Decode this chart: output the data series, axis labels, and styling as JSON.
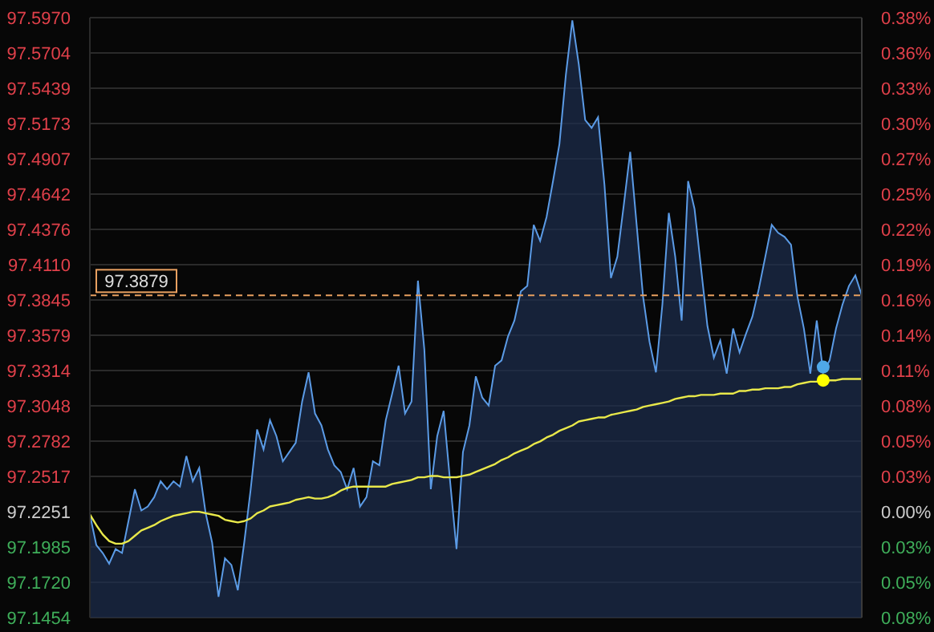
{
  "chart_data": {
    "type": "line",
    "categories": [
      null,
      null,
      null,
      null,
      null,
      null,
      null,
      null,
      null,
      null,
      null,
      null,
      null,
      null,
      null,
      null,
      null,
      null,
      null,
      null,
      null,
      null,
      null,
      null,
      null,
      null,
      null,
      null,
      null,
      null,
      null,
      null,
      null,
      null,
      null,
      null,
      null,
      null,
      null,
      null,
      null,
      null,
      null,
      null,
      null,
      null,
      null,
      null,
      null,
      null,
      null,
      null,
      null,
      null,
      null,
      null,
      null,
      null,
      null,
      null,
      null,
      null,
      null,
      null,
      null,
      null,
      null,
      null,
      null,
      null,
      null,
      null,
      null,
      null,
      null,
      null,
      null,
      null,
      null,
      null,
      null,
      null,
      null,
      null,
      null,
      null,
      null,
      null,
      null,
      null,
      null,
      null,
      null,
      null,
      null,
      null,
      null,
      null,
      null,
      null,
      null,
      null,
      null,
      null,
      null,
      null,
      null,
      null,
      null,
      null,
      null,
      null,
      null,
      null,
      null,
      null,
      null,
      null,
      null,
      null,
      null
    ],
    "series": [
      {
        "type": "area",
        "color": "#5b9be6",
        "values": [
          97.223,
          97.2,
          97.194,
          97.186,
          97.197,
          97.194,
          97.218,
          97.242,
          97.226,
          97.229,
          97.236,
          97.248,
          97.242,
          97.248,
          97.244,
          97.267,
          97.248,
          97.258,
          97.224,
          97.202,
          97.161,
          97.19,
          97.185,
          97.166,
          97.202,
          97.242,
          97.287,
          97.272,
          97.294,
          97.282,
          97.263,
          97.27,
          97.277,
          97.308,
          97.33,
          97.299,
          97.29,
          97.272,
          97.26,
          97.255,
          97.242,
          97.258,
          97.229,
          97.236,
          97.263,
          97.26,
          97.294,
          97.314,
          97.335,
          97.299,
          97.308,
          97.399,
          97.347,
          97.242,
          97.282,
          97.301,
          97.248,
          97.197,
          97.27,
          97.29,
          97.327,
          97.311,
          97.305,
          97.335,
          97.339,
          97.357,
          97.369,
          97.391,
          97.395,
          97.441,
          97.429,
          97.447,
          97.474,
          97.502,
          97.554,
          97.595,
          97.562,
          97.52,
          97.514,
          97.522,
          97.471,
          97.401,
          97.417,
          97.456,
          97.496,
          97.441,
          97.387,
          97.353,
          97.33,
          97.381,
          97.45,
          97.417,
          97.369,
          97.474,
          97.453,
          97.409,
          97.365,
          97.341,
          97.354,
          97.329,
          97.363,
          97.345,
          97.359,
          97.372,
          97.393,
          97.417,
          97.441,
          97.435,
          97.432,
          97.426,
          97.387,
          97.363,
          97.329,
          97.369,
          97.33,
          97.339,
          97.363,
          97.381,
          97.395,
          97.403,
          97.388
        ]
      },
      {
        "color": "#e8e84a",
        "values": [
          97.223,
          97.215,
          97.208,
          97.203,
          97.201,
          97.201,
          97.203,
          97.207,
          97.211,
          97.213,
          97.215,
          97.218,
          97.22,
          97.222,
          97.223,
          97.224,
          97.225,
          97.225,
          97.224,
          97.223,
          97.222,
          97.219,
          97.218,
          97.217,
          97.218,
          97.22,
          97.224,
          97.226,
          97.229,
          97.23,
          97.231,
          97.232,
          97.234,
          97.235,
          97.236,
          97.235,
          97.235,
          97.236,
          97.238,
          97.241,
          97.243,
          97.244,
          97.244,
          97.244,
          97.244,
          97.244,
          97.244,
          97.246,
          97.247,
          97.248,
          97.249,
          97.251,
          97.251,
          97.252,
          97.252,
          97.251,
          97.251,
          97.251,
          97.252,
          97.253,
          97.255,
          97.257,
          97.259,
          97.261,
          97.264,
          97.266,
          97.269,
          97.271,
          97.273,
          97.276,
          97.278,
          97.281,
          97.283,
          97.286,
          97.288,
          97.29,
          97.293,
          97.294,
          97.295,
          97.296,
          97.296,
          97.298,
          97.299,
          97.3,
          97.301,
          97.302,
          97.304,
          97.305,
          97.306,
          97.307,
          97.308,
          97.31,
          97.311,
          97.312,
          97.312,
          97.313,
          97.313,
          97.313,
          97.314,
          97.314,
          97.314,
          97.316,
          97.316,
          97.317,
          97.317,
          97.318,
          97.318,
          97.318,
          97.319,
          97.319,
          97.321,
          97.322,
          97.323,
          97.323,
          97.324,
          97.324,
          97.324,
          97.325,
          97.325,
          97.325,
          97.325
        ]
      },
      {
        "type": "scatter",
        "color": "#4fa8e8",
        "values": [
          null,
          null,
          null,
          null,
          null,
          null,
          null,
          null,
          null,
          null,
          null,
          null,
          null,
          null,
          null,
          null,
          null,
          null,
          null,
          null,
          null,
          null,
          null,
          null,
          null,
          null,
          null,
          null,
          null,
          null,
          null,
          null,
          null,
          null,
          null,
          null,
          null,
          null,
          null,
          null,
          null,
          null,
          null,
          null,
          null,
          null,
          null,
          null,
          null,
          null,
          null,
          null,
          null,
          null,
          null,
          null,
          null,
          null,
          null,
          null,
          null,
          null,
          null,
          null,
          null,
          null,
          null,
          null,
          null,
          null,
          null,
          null,
          null,
          null,
          null,
          null,
          null,
          null,
          null,
          null,
          null,
          null,
          null,
          null,
          null,
          null,
          null,
          null,
          null,
          null,
          null,
          null,
          null,
          null,
          null,
          null,
          null,
          null,
          null,
          null,
          null,
          null,
          null,
          null,
          null,
          null,
          null,
          null,
          null,
          null,
          null,
          null,
          null,
          null,
          97.334,
          null,
          null,
          null,
          null,
          null,
          null
        ]
      },
      {
        "type": "scatter",
        "color": "#ffff00",
        "values": [
          null,
          null,
          null,
          null,
          null,
          null,
          null,
          null,
          null,
          null,
          null,
          null,
          null,
          null,
          null,
          null,
          null,
          null,
          null,
          null,
          null,
          null,
          null,
          null,
          null,
          null,
          null,
          null,
          null,
          null,
          null,
          null,
          null,
          null,
          null,
          null,
          null,
          null,
          null,
          null,
          null,
          null,
          null,
          null,
          null,
          null,
          null,
          null,
          null,
          null,
          null,
          null,
          null,
          null,
          null,
          null,
          null,
          null,
          null,
          null,
          null,
          null,
          null,
          null,
          null,
          null,
          null,
          null,
          null,
          null,
          null,
          null,
          null,
          null,
          null,
          null,
          null,
          null,
          null,
          null,
          null,
          null,
          null,
          null,
          null,
          null,
          null,
          null,
          null,
          null,
          null,
          null,
          null,
          null,
          null,
          null,
          null,
          null,
          null,
          null,
          null,
          null,
          null,
          null,
          null,
          null,
          null,
          null,
          null,
          null,
          null,
          null,
          null,
          null,
          97.324,
          null,
          null,
          null,
          null,
          null,
          null
        ]
      }
    ],
    "ylim": [
      97.1454,
      97.597
    ],
    "yticks": [
      97.1454,
      {
        "value": 97.172,
        "label": "97.1720"
      },
      97.1985,
      97.2251,
      97.2517,
      97.2782,
      97.3048,
      97.3314,
      97.3579,
      97.3845,
      {
        "value": 97.411,
        "label": "97.4110"
      },
      97.4376,
      97.4642,
      97.4907,
      97.5173,
      97.5439,
      97.5704,
      {
        "value": 97.597,
        "label": "97.5970"
      }
    ],
    "y2lim": [
      -0.082,
      0.3825
    ],
    "y2ticks": [
      {
        "value": -0.082,
        "label": "0.08%"
      },
      {
        "value": -0.0546,
        "label": "0.05%"
      },
      {
        "value": -0.0274,
        "label": "0.03%"
      },
      {
        "value": 0,
        "label": "0.00%"
      },
      {
        "value": 0.0273,
        "label": "0.03%"
      },
      {
        "value": 0.0547,
        "label": "0.05%"
      },
      {
        "value": 0.082,
        "label": "0.08%"
      },
      {
        "value": 0.1093,
        "label": "0.11%"
      },
      {
        "value": 0.1366,
        "label": "0.14%"
      },
      {
        "value": 0.164,
        "label": "0.16%"
      },
      {
        "value": 0.1913,
        "label": "0.19%"
      },
      {
        "value": 0.2186,
        "label": "0.22%"
      },
      {
        "value": 0.2459,
        "label": "0.25%"
      },
      {
        "value": 0.2732,
        "label": "0.27%"
      },
      {
        "value": 0.3005,
        "label": "0.30%"
      },
      {
        "value": 0.3279,
        "label": "0.33%"
      },
      {
        "value": 0.3552,
        "label": "0.36%"
      },
      {
        "value": 0.3825,
        "label": "0.38%"
      }
    ],
    "ref_lines": [
      {
        "axis": "y",
        "value": 97.3879,
        "label": "97.3879",
        "color": "#e8a060",
        "line_style": "dashed"
      }
    ],
    "grid": true,
    "tick_labels": "y"
  }
}
